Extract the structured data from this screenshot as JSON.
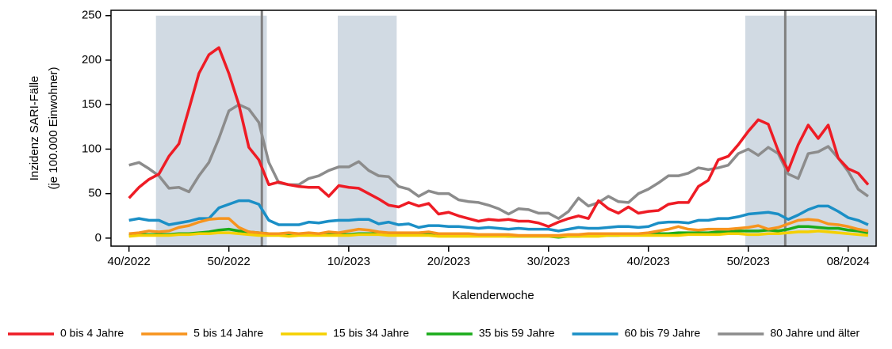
{
  "chart_data": {
    "type": "line",
    "y_label": [
      "Inzidenz SARI-Fälle",
      "(je 100.000 Einwohner)"
    ],
    "x_label": "Kalenderwoche",
    "categories": [
      "40/2022",
      null,
      null,
      null,
      null,
      null,
      null,
      null,
      null,
      null,
      "50/2022",
      null,
      null,
      null,
      null,
      null,
      null,
      null,
      null,
      null,
      null,
      null,
      "10/2023",
      null,
      null,
      null,
      null,
      null,
      null,
      null,
      null,
      null,
      "20/2023",
      null,
      null,
      null,
      null,
      null,
      null,
      null,
      null,
      null,
      "30/2023",
      null,
      null,
      null,
      null,
      null,
      null,
      null,
      null,
      null,
      "40/2023",
      null,
      null,
      null,
      null,
      null,
      null,
      null,
      null,
      null,
      "50/2023",
      null,
      null,
      null,
      null,
      null,
      null,
      null,
      null,
      null,
      "08/2024",
      null,
      null
    ],
    "xlim": [
      -1.8,
      74.8
    ],
    "ylim": [
      -9,
      256
    ],
    "yticks": [
      0,
      50,
      100,
      150,
      200,
      250
    ],
    "shaded_ranges": [
      [
        2.7,
        13.8
      ],
      [
        20.9,
        26.8
      ],
      [
        61.7,
        74.8
      ]
    ],
    "vlines": [
      13.3,
      65.7
    ],
    "legend": "bottom",
    "series": [
      {
        "name": "0 bis 4 Jahre",
        "color": "#ee1c25",
        "values": [
          45,
          57,
          66,
          72,
          92,
          106,
          145,
          185,
          206,
          214,
          185,
          150,
          102,
          88,
          60,
          63,
          60,
          58,
          57,
          57,
          47,
          59,
          57,
          56,
          50,
          44,
          37,
          35,
          40,
          36,
          39,
          27,
          29,
          25,
          22,
          19,
          21,
          20,
          21,
          19,
          19,
          17,
          13,
          18,
          22,
          25,
          22,
          42,
          33,
          28,
          35,
          28,
          30,
          31,
          38,
          40,
          40,
          58,
          65,
          88,
          92,
          105,
          120,
          133,
          128,
          98,
          76,
          105,
          127,
          112,
          127,
          90,
          78,
          73,
          60
        ]
      },
      {
        "name": "5 bis 14 Jahre",
        "color": "#f7941d",
        "values": [
          5,
          6,
          8,
          7,
          8,
          12,
          14,
          18,
          21,
          22,
          22,
          12,
          7,
          6,
          5,
          5,
          6,
          5,
          6,
          5,
          7,
          6,
          8,
          10,
          9,
          7,
          6,
          6,
          6,
          6,
          7,
          5,
          5,
          5,
          5,
          4,
          4,
          4,
          4,
          3,
          3,
          3,
          3,
          3,
          4,
          4,
          5,
          5,
          5,
          5,
          5,
          5,
          6,
          8,
          10,
          13,
          10,
          9,
          10,
          10,
          10,
          11,
          12,
          14,
          10,
          12,
          16,
          20,
          21,
          20,
          16,
          15,
          13,
          10,
          8
        ]
      },
      {
        "name": "15 bis 34 Jahre",
        "color": "#f5d000",
        "values": [
          2,
          3,
          3,
          3,
          3,
          4,
          4,
          5,
          5,
          6,
          6,
          5,
          4,
          3,
          3,
          3,
          2,
          3,
          3,
          3,
          3,
          3,
          3,
          4,
          4,
          4,
          3,
          3,
          3,
          3,
          3,
          2,
          2,
          2,
          2,
          2,
          2,
          2,
          2,
          2,
          2,
          2,
          2,
          2,
          2,
          2,
          2,
          2,
          3,
          3,
          3,
          3,
          3,
          3,
          3,
          3,
          4,
          4,
          4,
          4,
          5,
          5,
          4,
          4,
          5,
          5,
          6,
          7,
          7,
          8,
          7,
          6,
          5,
          4,
          3
        ]
      },
      {
        "name": "35 bis 59 Jahre",
        "color": "#1aab1a",
        "values": [
          3,
          4,
          4,
          4,
          4,
          5,
          5,
          6,
          7,
          9,
          10,
          8,
          7,
          6,
          5,
          4,
          4,
          4,
          4,
          4,
          5,
          4,
          4,
          5,
          5,
          5,
          4,
          4,
          4,
          4,
          4,
          3,
          3,
          3,
          3,
          3,
          3,
          3,
          2,
          2,
          2,
          2,
          2,
          1,
          2,
          2,
          3,
          3,
          3,
          3,
          4,
          4,
          4,
          5,
          5,
          6,
          6,
          6,
          6,
          7,
          7,
          8,
          8,
          8,
          9,
          8,
          10,
          13,
          13,
          12,
          11,
          11,
          9,
          8,
          6
        ]
      },
      {
        "name": "60 bis 79 Jahre",
        "color": "#1b8fc6",
        "values": [
          20,
          22,
          20,
          20,
          15,
          17,
          19,
          22,
          22,
          34,
          38,
          42,
          42,
          38,
          20,
          15,
          15,
          15,
          18,
          17,
          19,
          20,
          20,
          21,
          21,
          16,
          18,
          15,
          16,
          12,
          14,
          14,
          13,
          13,
          12,
          11,
          12,
          11,
          10,
          11,
          10,
          10,
          10,
          8,
          10,
          12,
          11,
          11,
          12,
          13,
          13,
          12,
          13,
          17,
          18,
          18,
          17,
          20,
          20,
          22,
          22,
          24,
          27,
          28,
          29,
          27,
          21,
          26,
          32,
          36,
          36,
          30,
          23,
          20,
          15
        ]
      },
      {
        "name": "80 Jahre und älter",
        "color": "#8c8c8c",
        "values": [
          82,
          85,
          78,
          70,
          56,
          57,
          52,
          70,
          85,
          112,
          143,
          150,
          145,
          130,
          85,
          62,
          60,
          60,
          67,
          70,
          76,
          80,
          80,
          86,
          76,
          70,
          69,
          58,
          55,
          47,
          53,
          50,
          50,
          43,
          41,
          40,
          37,
          33,
          27,
          33,
          32,
          28,
          28,
          22,
          30,
          45,
          36,
          40,
          47,
          41,
          40,
          50,
          55,
          62,
          70,
          70,
          73,
          79,
          77,
          79,
          82,
          95,
          100,
          93,
          102,
          95,
          72,
          67,
          95,
          97,
          103,
          90,
          75,
          55,
          47
        ]
      }
    ]
  }
}
